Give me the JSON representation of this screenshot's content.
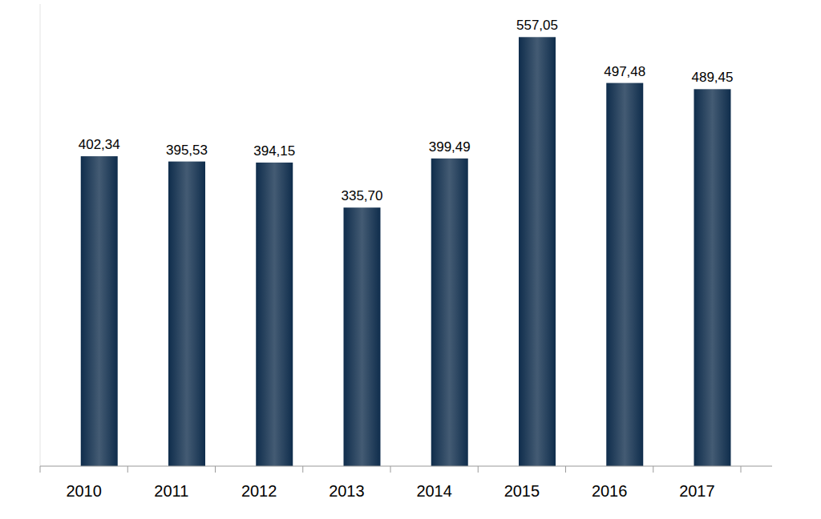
{
  "chart_data": {
    "type": "bar",
    "categories": [
      "2010",
      "2011",
      "2012",
      "2013",
      "2014",
      "2015",
      "2016",
      "2017"
    ],
    "values": [
      402.34,
      395.53,
      394.15,
      335.7,
      399.49,
      557.05,
      497.48,
      489.45
    ],
    "value_labels": [
      "402,34",
      "395,53",
      "394,15",
      "335,70",
      "399,49",
      "557,05",
      "497,48",
      "489,45"
    ],
    "color": "#0f2d4c",
    "ylim": [
      0,
      600
    ],
    "yticks": [],
    "grid": false,
    "data_labels": true,
    "tick_labels": "x"
  }
}
